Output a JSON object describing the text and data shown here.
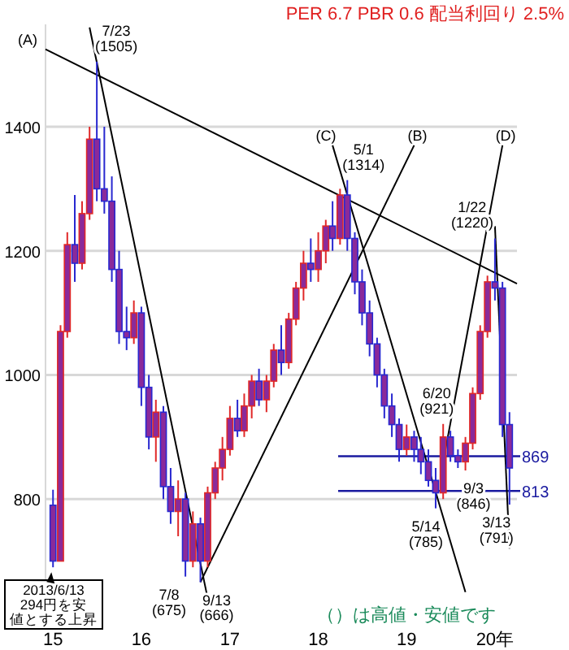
{
  "chart_data": {
    "type": "candlestick",
    "title": "PER 6.7 PBR 0.6 配当利回り 2.5%",
    "x": [
      "2015-01",
      "2015-02",
      "2015-03",
      "2015-04",
      "2015-05",
      "2015-06",
      "2015-07",
      "2015-08",
      "2015-09",
      "2015-10",
      "2015-11",
      "2015-12",
      "2016-01",
      "2016-02",
      "2016-03",
      "2016-04",
      "2016-05",
      "2016-06",
      "2016-07",
      "2016-08",
      "2016-09",
      "2016-10",
      "2016-11",
      "2016-12",
      "2017-01",
      "2017-02",
      "2017-03",
      "2017-04",
      "2017-05",
      "2017-06",
      "2017-07",
      "2017-08",
      "2017-09",
      "2017-10",
      "2017-11",
      "2017-12",
      "2018-01",
      "2018-02",
      "2018-03",
      "2018-04",
      "2018-05",
      "2018-06",
      "2018-07",
      "2018-08",
      "2018-09",
      "2018-10",
      "2018-11",
      "2018-12",
      "2019-01",
      "2019-02",
      "2019-03",
      "2019-04",
      "2019-05",
      "2019-06",
      "2019-07",
      "2019-08",
      "2019-09",
      "2019-10",
      "2019-11",
      "2019-12",
      "2020-01",
      "2020-02",
      "2020-03"
    ],
    "ohlc": [
      [
        790,
        815,
        690,
        700
      ],
      [
        700,
        1080,
        700,
        1070
      ],
      [
        1070,
        1230,
        1060,
        1210
      ],
      [
        1210,
        1290,
        1150,
        1180
      ],
      [
        1180,
        1280,
        1170,
        1260
      ],
      [
        1260,
        1400,
        1250,
        1380
      ],
      [
        1380,
        1505,
        1280,
        1300
      ],
      [
        1300,
        1400,
        1260,
        1280
      ],
      [
        1280,
        1320,
        1150,
        1170
      ],
      [
        1170,
        1200,
        1050,
        1070
      ],
      [
        1070,
        1110,
        1040,
        1060
      ],
      [
        1060,
        1120,
        1050,
        1100
      ],
      [
        1100,
        1110,
        950,
        980
      ],
      [
        980,
        1000,
        880,
        900
      ],
      [
        900,
        960,
        860,
        940
      ],
      [
        940,
        950,
        800,
        820
      ],
      [
        820,
        850,
        760,
        780
      ],
      [
        780,
        830,
        740,
        800
      ],
      [
        800,
        810,
        675,
        700
      ],
      [
        700,
        780,
        690,
        760
      ],
      [
        760,
        770,
        666,
        700
      ],
      [
        700,
        820,
        690,
        810
      ],
      [
        810,
        860,
        800,
        850
      ],
      [
        850,
        900,
        830,
        880
      ],
      [
        880,
        950,
        870,
        930
      ],
      [
        930,
        960,
        900,
        910
      ],
      [
        910,
        970,
        900,
        950
      ],
      [
        950,
        1000,
        930,
        990
      ],
      [
        990,
        1010,
        950,
        960
      ],
      [
        960,
        1000,
        940,
        990
      ],
      [
        990,
        1050,
        980,
        1040
      ],
      [
        1040,
        1080,
        1000,
        1020
      ],
      [
        1020,
        1100,
        1010,
        1090
      ],
      [
        1090,
        1150,
        1080,
        1140
      ],
      [
        1140,
        1200,
        1120,
        1180
      ],
      [
        1180,
        1220,
        1150,
        1170
      ],
      [
        1170,
        1230,
        1150,
        1200
      ],
      [
        1200,
        1250,
        1180,
        1240
      ],
      [
        1240,
        1280,
        1200,
        1220
      ],
      [
        1220,
        1300,
        1210,
        1290
      ],
      [
        1290,
        1314,
        1200,
        1220
      ],
      [
        1220,
        1230,
        1130,
        1150
      ],
      [
        1150,
        1170,
        1080,
        1100
      ],
      [
        1100,
        1120,
        1030,
        1050
      ],
      [
        1050,
        1060,
        980,
        1000
      ],
      [
        1000,
        1010,
        930,
        950
      ],
      [
        950,
        970,
        900,
        920
      ],
      [
        920,
        930,
        860,
        880
      ],
      [
        880,
        920,
        870,
        900
      ],
      [
        900,
        910,
        860,
        880
      ],
      [
        880,
        900,
        840,
        860
      ],
      [
        860,
        880,
        820,
        830
      ],
      [
        830,
        850,
        785,
        810
      ],
      [
        810,
        921,
        800,
        900
      ],
      [
        900,
        910,
        860,
        870
      ],
      [
        870,
        880,
        850,
        860
      ],
      [
        860,
        900,
        846,
        890
      ],
      [
        890,
        980,
        880,
        970
      ],
      [
        970,
        1080,
        960,
        1070
      ],
      [
        1070,
        1160,
        1060,
        1150
      ],
      [
        1150,
        1220,
        1120,
        1140
      ],
      [
        1140,
        1150,
        900,
        920
      ],
      [
        920,
        940,
        791,
        850
      ]
    ],
    "series": [
      {
        "type": "line",
        "name": "(A)",
        "color": "#000000",
        "x": [
          "2014-12",
          "2020-04"
        ],
        "values": [
          1525,
          1147
        ]
      },
      {
        "type": "line",
        "name": "(B)",
        "color": "#000000",
        "x": [
          "2016-09",
          "2019-02"
        ],
        "values": [
          666,
          1370
        ]
      },
      {
        "type": "line",
        "name": "(C)",
        "color": "#000000",
        "x": [
          "2018-03",
          "2019-09"
        ],
        "values": [
          1370,
          650
        ]
      },
      {
        "type": "line",
        "name": "(D)",
        "color": "#000000",
        "x": [
          "2019-06",
          "2020-02"
        ],
        "values": [
          860,
          1370
        ]
      },
      {
        "type": "line",
        "color": "#000000",
        "x": [
          "2015-06",
          "2016-10"
        ],
        "values": [
          1560,
          640
        ]
      },
      {
        "type": "line",
        "color": "#000000",
        "x": [
          "2020-01",
          "2020-03"
        ],
        "values": [
          1240,
          720
        ]
      }
    ],
    "ref_lines": [
      {
        "axis": "y",
        "value": 869,
        "label": "869",
        "color": "#1a1aa0"
      },
      {
        "axis": "y",
        "value": 813,
        "label": "813",
        "color": "#1a1aa0"
      }
    ],
    "annotations": [
      {
        "text": "7/23\n(1505)",
        "x": "2015-07",
        "y": 1505
      },
      {
        "text": "7/8\n(675)",
        "x": "2016-07",
        "y": 675
      },
      {
        "text": "9/13\n(666)",
        "x": "2016-09",
        "y": 666
      },
      {
        "text": "5/1\n(1314)",
        "x": "2018-05",
        "y": 1314
      },
      {
        "text": "5/14\n(785)",
        "x": "2019-05",
        "y": 785
      },
      {
        "text": "6/20\n(921)",
        "x": "2019-06",
        "y": 921
      },
      {
        "text": "9/3\n(846)",
        "x": "2019-09",
        "y": 846
      },
      {
        "text": "1/22\n(1220)",
        "x": "2020-01",
        "y": 1220
      },
      {
        "text": "3/13\n(791)",
        "x": "2020-03",
        "y": 791
      },
      {
        "text": "2013/6/13\n294円を安値とする上昇",
        "x": "2015-01",
        "y": 690
      },
      "（）は高値・安値です"
    ],
    "ylim": [
      630,
      1565
    ],
    "yticks": [
      800,
      1000,
      1200,
      1400
    ],
    "xlim": [
      "2014-12",
      "2020-04"
    ],
    "xticks": [
      {
        "value": "2015-01",
        "label": "15"
      },
      {
        "value": "2016-01",
        "label": "16"
      },
      {
        "value": "2017-01",
        "label": "17"
      },
      {
        "value": "2018-01",
        "label": "18"
      },
      {
        "value": "2019-01",
        "label": "19"
      },
      {
        "value": "2020-01",
        "label": "20年"
      }
    ],
    "grid": "y"
  }
}
